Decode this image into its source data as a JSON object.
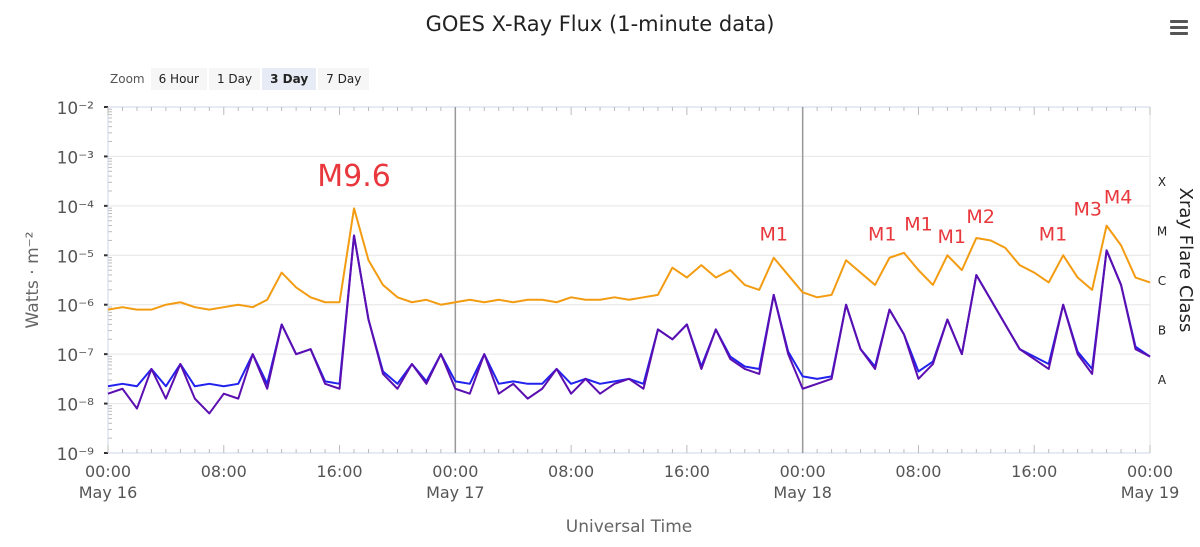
{
  "title": "GOES X-Ray Flux (1-minute data)",
  "menu_icon": "hamburger-menu-icon",
  "zoom": {
    "label": "Zoom",
    "buttons": [
      "6 Hour",
      "1 Day",
      "3 Day",
      "7 Day"
    ],
    "selected": "3 Day"
  },
  "chart_data": {
    "type": "line",
    "title": "GOES X-Ray Flux (1-minute data)",
    "xlabel": "Universal Time",
    "ylabel": "Watts · m⁻²",
    "ylabel_right": "Xray Flare Class",
    "yscale": "log",
    "ylim_log10": [
      -9,
      -2
    ],
    "y_ticks": [
      "10⁻⁹",
      "10⁻⁸",
      "10⁻⁷",
      "10⁻⁶",
      "10⁻⁵",
      "10⁻⁴",
      "10⁻³",
      "10⁻²"
    ],
    "xlim_hours": [
      0,
      72
    ],
    "x_ticks": [
      {
        "h": 0,
        "time": "00:00",
        "date": "May 16"
      },
      {
        "h": 8,
        "time": "08:00",
        "date": ""
      },
      {
        "h": 16,
        "time": "16:00",
        "date": ""
      },
      {
        "h": 24,
        "time": "00:00",
        "date": "May 17"
      },
      {
        "h": 32,
        "time": "08:00",
        "date": ""
      },
      {
        "h": 40,
        "time": "16:00",
        "date": ""
      },
      {
        "h": 48,
        "time": "00:00",
        "date": "May 18"
      },
      {
        "h": 56,
        "time": "08:00",
        "date": ""
      },
      {
        "h": 64,
        "time": "16:00",
        "date": ""
      },
      {
        "h": 72,
        "time": "00:00",
        "date": "May 19"
      }
    ],
    "day_lines_hours": [
      24,
      48
    ],
    "flare_classes": [
      {
        "label": "A",
        "decade": -8
      },
      {
        "label": "B",
        "decade": -7
      },
      {
        "label": "C",
        "decade": -6
      },
      {
        "label": "M",
        "decade": -5
      },
      {
        "label": "X",
        "decade": -4
      }
    ],
    "grid": true,
    "x_hours_step": 1,
    "series": [
      {
        "color": "#f39c12",
        "log10_values": [
          -6.1,
          -6.05,
          -6.1,
          -6.1,
          -6.0,
          -5.95,
          -6.05,
          -6.1,
          -6.05,
          -6.0,
          -6.05,
          -5.9,
          -5.35,
          -5.65,
          -5.85,
          -5.95,
          -5.95,
          -4.05,
          -5.1,
          -5.6,
          -5.85,
          -5.95,
          -5.9,
          -6.0,
          -5.95,
          -5.9,
          -5.95,
          -5.9,
          -5.95,
          -5.9,
          -5.9,
          -5.95,
          -5.85,
          -5.9,
          -5.9,
          -5.85,
          -5.9,
          -5.85,
          -5.8,
          -5.25,
          -5.45,
          -5.2,
          -5.45,
          -5.3,
          -5.6,
          -5.7,
          -5.05,
          -5.4,
          -5.75,
          -5.85,
          -5.8,
          -5.1,
          -5.35,
          -5.6,
          -5.05,
          -4.95,
          -5.3,
          -5.6,
          -5.0,
          -5.3,
          -4.65,
          -4.7,
          -4.85,
          -5.2,
          -5.35,
          -5.55,
          -5.0,
          -5.45,
          -5.7,
          -4.4,
          -4.8,
          -5.45,
          -5.55
        ]
      },
      {
        "color": "#2222ee",
        "log10_values": [
          -7.65,
          -7.6,
          -7.65,
          -7.3,
          -7.65,
          -7.2,
          -7.65,
          -7.6,
          -7.65,
          -7.6,
          -7.0,
          -7.6,
          -6.4,
          -7.0,
          -6.9,
          -7.55,
          -7.6,
          -4.6,
          -6.3,
          -7.35,
          -7.6,
          -7.2,
          -7.55,
          -7.0,
          -7.55,
          -7.6,
          -7.0,
          -7.6,
          -7.55,
          -7.6,
          -7.6,
          -7.3,
          -7.6,
          -7.5,
          -7.6,
          -7.55,
          -7.5,
          -7.6,
          -6.5,
          -6.7,
          -6.4,
          -7.25,
          -6.5,
          -7.05,
          -7.25,
          -7.3,
          -5.8,
          -6.95,
          -7.45,
          -7.5,
          -7.45,
          -6.0,
          -6.9,
          -7.25,
          -6.1,
          -6.6,
          -7.35,
          -7.15,
          -6.3,
          -7.0,
          -5.4,
          -5.9,
          -6.4,
          -6.9,
          -7.05,
          -7.2,
          -6.0,
          -6.95,
          -7.3,
          -4.9,
          -5.6,
          -6.85,
          -7.05
        ]
      },
      {
        "color": "#5b0fb0",
        "log10_values": [
          -7.8,
          -7.7,
          -8.1,
          -7.3,
          -7.9,
          -7.2,
          -7.9,
          -8.2,
          -7.8,
          -7.9,
          -7.0,
          -7.7,
          -6.4,
          -7.0,
          -6.9,
          -7.6,
          -7.7,
          -4.6,
          -6.3,
          -7.4,
          -7.7,
          -7.2,
          -7.6,
          -7.0,
          -7.7,
          -7.8,
          -7.0,
          -7.8,
          -7.6,
          -7.9,
          -7.7,
          -7.3,
          -7.8,
          -7.5,
          -7.8,
          -7.6,
          -7.5,
          -7.7,
          -6.5,
          -6.7,
          -6.4,
          -7.3,
          -6.5,
          -7.1,
          -7.3,
          -7.4,
          -5.8,
          -7.0,
          -7.7,
          -7.6,
          -7.5,
          -6.0,
          -6.9,
          -7.3,
          -6.1,
          -6.6,
          -7.5,
          -7.2,
          -6.3,
          -7.0,
          -5.4,
          -5.9,
          -6.4,
          -6.9,
          -7.1,
          -7.3,
          -6.0,
          -7.0,
          -7.4,
          -4.9,
          -5.6,
          -6.9,
          -7.05
        ]
      }
    ],
    "annotations": [
      {
        "text": "M9.6",
        "h": 17,
        "log10": -3.6,
        "big": true
      },
      {
        "text": "M1",
        "h": 46,
        "log10": -4.7
      },
      {
        "text": "M1",
        "h": 53.5,
        "log10": -4.7
      },
      {
        "text": "M1",
        "h": 56,
        "log10": -4.5
      },
      {
        "text": "M1",
        "h": 58.3,
        "log10": -4.75
      },
      {
        "text": "M2",
        "h": 60.3,
        "log10": -4.35
      },
      {
        "text": "M1",
        "h": 65.3,
        "log10": -4.7
      },
      {
        "text": "M3",
        "h": 67.7,
        "log10": -4.2
      },
      {
        "text": "M4",
        "h": 69.8,
        "log10": -3.95
      }
    ],
    "annotation_color": "#e8383d"
  }
}
